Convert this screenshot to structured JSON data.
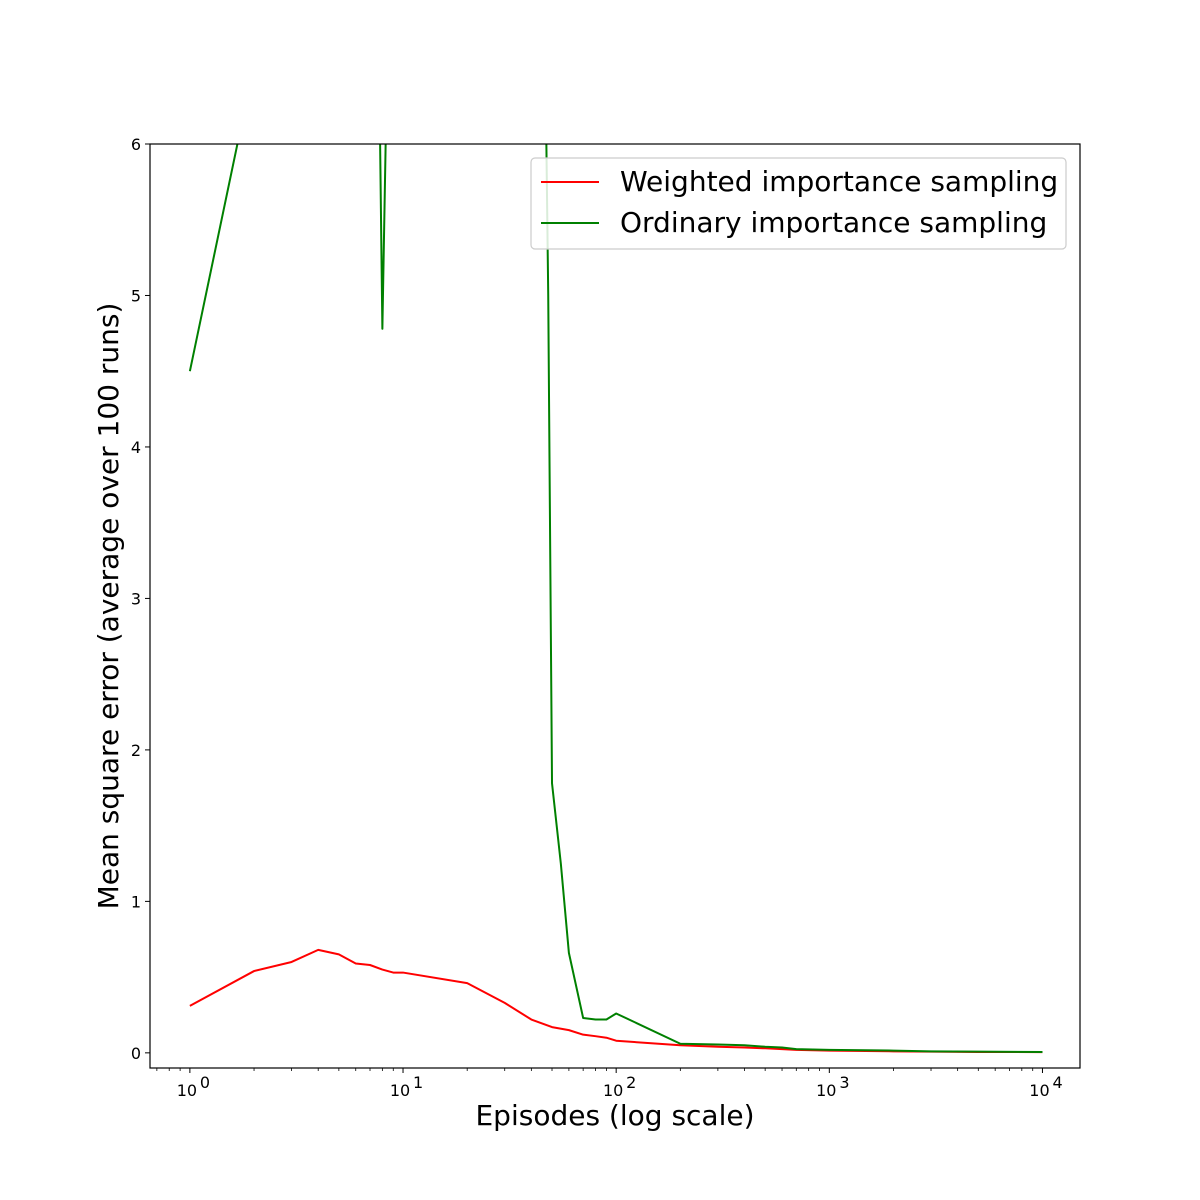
{
  "chart_data": {
    "type": "line",
    "title": "",
    "xlabel": "Episodes (log scale)",
    "ylabel": "Mean square error (average over 100 runs)",
    "xscale": "log",
    "xlim": [
      0.65,
      15000
    ],
    "ylim": [
      -0.1,
      6
    ],
    "grid": false,
    "legend_position": "top-right",
    "x_ticks": [
      {
        "value": 1,
        "base": "10",
        "exp": "0"
      },
      {
        "value": 10,
        "base": "10",
        "exp": "1"
      },
      {
        "value": 100,
        "base": "10",
        "exp": "2"
      },
      {
        "value": 1000,
        "base": "10",
        "exp": "3"
      },
      {
        "value": 10000,
        "base": "10",
        "exp": "4"
      }
    ],
    "y_ticks": [
      {
        "value": 0,
        "label": "0"
      },
      {
        "value": 1,
        "label": "1"
      },
      {
        "value": 2,
        "label": "2"
      },
      {
        "value": 3,
        "label": "3"
      },
      {
        "value": 4,
        "label": "4"
      },
      {
        "value": 5,
        "label": "5"
      },
      {
        "value": 6,
        "label": "6"
      }
    ],
    "series": [
      {
        "name": "Weighted importance sampling",
        "color": "#ff0000",
        "points": [
          [
            1,
            0.31
          ],
          [
            2,
            0.54
          ],
          [
            3,
            0.6
          ],
          [
            4,
            0.68
          ],
          [
            5,
            0.65
          ],
          [
            6,
            0.59
          ],
          [
            7,
            0.58
          ],
          [
            8,
            0.55
          ],
          [
            9,
            0.53
          ],
          [
            10,
            0.53
          ],
          [
            20,
            0.46
          ],
          [
            30,
            0.33
          ],
          [
            40,
            0.22
          ],
          [
            50,
            0.17
          ],
          [
            60,
            0.15
          ],
          [
            70,
            0.12
          ],
          [
            80,
            0.11
          ],
          [
            90,
            0.1
          ],
          [
            100,
            0.08
          ],
          [
            200,
            0.05
          ],
          [
            300,
            0.04
          ],
          [
            400,
            0.035
          ],
          [
            500,
            0.03
          ],
          [
            600,
            0.025
          ],
          [
            700,
            0.02
          ],
          [
            1000,
            0.015
          ],
          [
            2000,
            0.01
          ],
          [
            3000,
            0.008
          ],
          [
            5000,
            0.006
          ],
          [
            10000,
            0.005
          ]
        ]
      },
      {
        "name": "Ordinary importance sampling",
        "color": "#008000",
        "points": [
          [
            1,
            4.5
          ],
          [
            1.7,
            6.05
          ],
          [
            7.8,
            6.05
          ],
          [
            8,
            4.78
          ],
          [
            8.3,
            6.05
          ],
          [
            47,
            6.05
          ],
          [
            48,
            5.0
          ],
          [
            50,
            1.78
          ],
          [
            55,
            1.25
          ],
          [
            60,
            0.66
          ],
          [
            70,
            0.23
          ],
          [
            80,
            0.22
          ],
          [
            90,
            0.22
          ],
          [
            100,
            0.26
          ],
          [
            200,
            0.06
          ],
          [
            300,
            0.055
          ],
          [
            400,
            0.05
          ],
          [
            500,
            0.04
          ],
          [
            600,
            0.035
          ],
          [
            700,
            0.025
          ],
          [
            1000,
            0.02
          ],
          [
            2000,
            0.015
          ],
          [
            3000,
            0.01
          ],
          [
            5000,
            0.008
          ],
          [
            10000,
            0.006
          ]
        ]
      }
    ]
  }
}
